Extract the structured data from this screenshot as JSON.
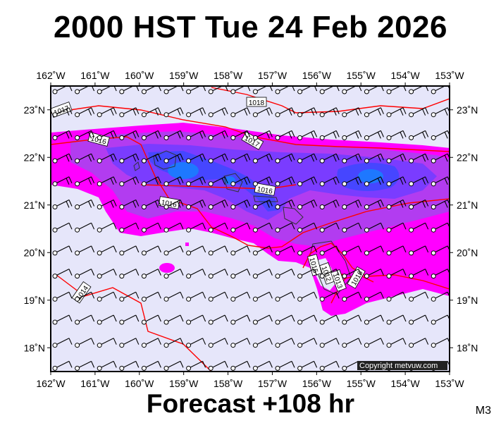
{
  "header": {
    "title": "2000 HST Tue 24 Feb 2026"
  },
  "footer": {
    "forecast": "Forecast +108 hr",
    "model": "M3"
  },
  "map": {
    "lon_range": [
      -162,
      -153
    ],
    "lat_range": [
      17.5,
      23.5
    ],
    "lon_labels": [
      "162˚W",
      "161˚W",
      "160˚W",
      "159˚W",
      "158˚W",
      "157˚W",
      "156˚W",
      "155˚W",
      "154˚W",
      "153˚W"
    ],
    "lat_labels_left": [
      "23˚N",
      "22˚N",
      "21˚N",
      "20˚N",
      "19˚N",
      "18˚N"
    ],
    "lat_labels_right": [
      "23˚N",
      "22˚N",
      "21˚N",
      "20˚N",
      "19˚N",
      "18˚N"
    ],
    "isobar_labels": [
      "1017",
      "1018",
      "1016",
      "1017",
      "1016",
      "1016",
      "1014",
      "1015",
      "1012",
      "1013",
      "1016"
    ],
    "copyright": "Copyright metvuw.com",
    "colors": {
      "background": "#e6e6fa",
      "light_rain": "#ff00ff",
      "moderate_rain": "#b23cf0",
      "heavy_rain": "#7a3cff",
      "very_heavy_rain": "#4646ff",
      "extreme_rain": "#1e78ff",
      "isobar": "#ff0000",
      "coast": "#333333",
      "wind_barb": "#000000"
    }
  }
}
